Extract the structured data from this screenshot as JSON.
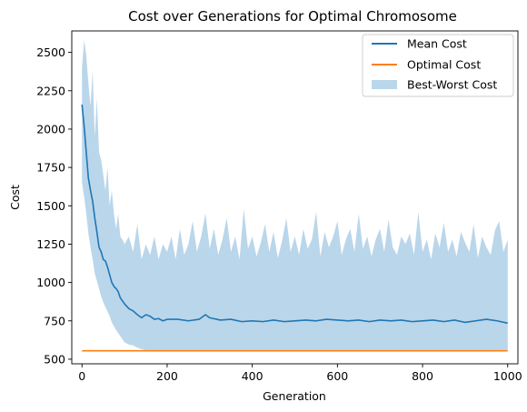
{
  "chart_data": {
    "type": "line",
    "title": "Cost over Generations for Optimal Chromosome",
    "xlabel": "Generation",
    "ylabel": "Cost",
    "xlim": [
      -24,
      1024
    ],
    "ylim": [
      470,
      2640
    ],
    "xticks": [
      0,
      200,
      400,
      600,
      800,
      1000
    ],
    "yticks": [
      500,
      750,
      1000,
      1250,
      1500,
      1750,
      2000,
      2250,
      2500
    ],
    "grid": false,
    "legend_position": "top-right",
    "series": [
      {
        "name": "Mean Cost",
        "kind": "line",
        "color": "#1f77b4",
        "x": [
          0,
          5,
          10,
          15,
          20,
          25,
          30,
          35,
          40,
          45,
          50,
          55,
          60,
          65,
          70,
          75,
          80,
          85,
          90,
          95,
          100,
          110,
          120,
          130,
          140,
          150,
          160,
          170,
          180,
          190,
          200,
          225,
          250,
          275,
          290,
          300,
          325,
          350,
          375,
          400,
          425,
          450,
          475,
          500,
          525,
          550,
          575,
          600,
          625,
          650,
          675,
          700,
          725,
          750,
          775,
          800,
          825,
          850,
          875,
          900,
          925,
          950,
          975,
          1000
        ],
        "y": [
          2160,
          2020,
          1850,
          1680,
          1600,
          1530,
          1420,
          1330,
          1230,
          1200,
          1150,
          1140,
          1100,
          1050,
          1000,
          975,
          960,
          940,
          900,
          880,
          860,
          830,
          815,
          790,
          770,
          790,
          780,
          760,
          765,
          750,
          760,
          760,
          750,
          760,
          790,
          770,
          755,
          760,
          745,
          750,
          745,
          755,
          745,
          750,
          755,
          750,
          760,
          755,
          750,
          755,
          745,
          755,
          750,
          755,
          745,
          750,
          755,
          745,
          755,
          740,
          750,
          760,
          750,
          735
        ]
      },
      {
        "name": "Optimal Cost",
        "kind": "line",
        "color": "#ff7f0e",
        "x": [
          0,
          1000
        ],
        "y": [
          555,
          555
        ]
      },
      {
        "name": "Best-Worst Cost",
        "kind": "area-band",
        "color": "#bad6ea",
        "x": [
          0,
          5,
          10,
          15,
          20,
          25,
          30,
          35,
          40,
          45,
          50,
          55,
          60,
          65,
          70,
          75,
          80,
          85,
          90,
          95,
          100,
          110,
          120,
          130,
          140,
          150,
          160,
          170,
          180,
          190,
          200,
          210,
          220,
          230,
          240,
          250,
          260,
          270,
          280,
          290,
          300,
          310,
          320,
          330,
          340,
          350,
          360,
          370,
          380,
          390,
          400,
          410,
          420,
          430,
          440,
          450,
          460,
          470,
          480,
          490,
          500,
          510,
          520,
          530,
          540,
          550,
          560,
          570,
          580,
          590,
          600,
          610,
          620,
          630,
          640,
          650,
          660,
          670,
          680,
          690,
          700,
          710,
          720,
          730,
          740,
          750,
          760,
          770,
          780,
          790,
          800,
          810,
          820,
          830,
          840,
          850,
          860,
          870,
          880,
          890,
          900,
          910,
          920,
          930,
          940,
          950,
          960,
          970,
          980,
          990,
          1000
        ],
        "low": [
          1650,
          1560,
          1450,
          1320,
          1230,
          1150,
          1060,
          1010,
          960,
          910,
          870,
          840,
          810,
          780,
          740,
          715,
          690,
          670,
          650,
          630,
          610,
          595,
          590,
          575,
          565,
          560,
          560,
          560,
          560,
          560,
          560,
          560,
          560,
          560,
          560,
          560,
          560,
          560,
          560,
          560,
          560,
          560,
          560,
          560,
          560,
          560,
          560,
          560,
          560,
          560,
          560,
          560,
          560,
          560,
          560,
          560,
          560,
          560,
          560,
          560,
          560,
          560,
          560,
          560,
          560,
          560,
          560,
          560,
          560,
          560,
          560,
          560,
          560,
          560,
          560,
          560,
          560,
          560,
          560,
          560,
          560,
          560,
          560,
          560,
          560,
          560,
          560,
          560,
          560,
          560,
          560,
          560,
          560,
          560,
          560,
          560,
          560,
          560,
          560,
          560,
          560,
          560,
          560,
          560,
          560,
          560,
          560,
          560,
          560,
          560,
          560
        ],
        "high": [
          2400,
          2580,
          2480,
          2300,
          2150,
          2380,
          1950,
          2200,
          1850,
          1800,
          1700,
          1600,
          1750,
          1500,
          1600,
          1450,
          1350,
          1450,
          1300,
          1280,
          1250,
          1300,
          1200,
          1380,
          1150,
          1250,
          1180,
          1300,
          1150,
          1250,
          1200,
          1300,
          1150,
          1350,
          1180,
          1250,
          1400,
          1200,
          1300,
          1450,
          1220,
          1350,
          1180,
          1280,
          1420,
          1200,
          1300,
          1150,
          1480,
          1220,
          1300,
          1170,
          1260,
          1380,
          1200,
          1330,
          1160,
          1270,
          1420,
          1200,
          1300,
          1180,
          1350,
          1220,
          1280,
          1460,
          1170,
          1330,
          1230,
          1300,
          1400,
          1180,
          1280,
          1350,
          1200,
          1450,
          1220,
          1300,
          1170,
          1280,
          1350,
          1200,
          1410,
          1230,
          1180,
          1300,
          1250,
          1320,
          1180,
          1460,
          1200,
          1280,
          1150,
          1320,
          1230,
          1390,
          1200,
          1280,
          1170,
          1330,
          1260,
          1200,
          1380,
          1160,
          1300,
          1230,
          1180,
          1340,
          1400,
          1200,
          1280
        ]
      }
    ]
  }
}
